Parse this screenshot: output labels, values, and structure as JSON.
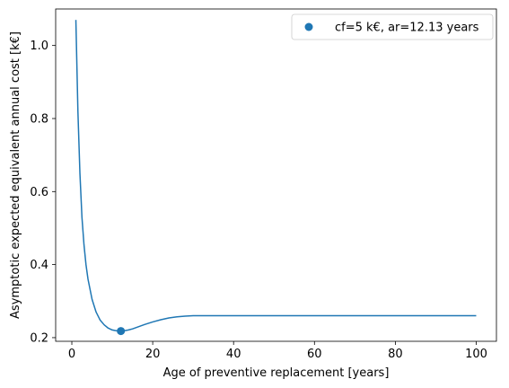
{
  "chart_data": {
    "type": "line",
    "xlabel": "Age of preventive replacement [years]",
    "ylabel": "Asymptotic expected equivalent annual cost [k€]",
    "xlim": [
      -4.0,
      105.0
    ],
    "ylim": [
      0.19,
      1.1
    ],
    "x_ticks": [
      0,
      20,
      40,
      60,
      80,
      100
    ],
    "x_tick_labels": [
      "0",
      "20",
      "40",
      "60",
      "80",
      "100"
    ],
    "y_ticks": [
      0.2,
      0.4,
      0.6,
      0.8,
      1.0
    ],
    "y_tick_labels": [
      "0.2",
      "0.4",
      "0.6",
      "0.8",
      "1.0"
    ],
    "grid": false,
    "legend_position": "top-right",
    "colors": {
      "line": "#1f77b4",
      "marker": "#1f77b4"
    },
    "series": [
      {
        "kind": "line",
        "x": [
          1,
          1.5,
          2,
          2.5,
          3,
          3.5,
          4,
          5,
          6,
          7,
          8,
          9,
          10,
          11,
          12,
          12.13,
          13,
          14,
          15,
          16,
          18,
          20,
          22,
          24,
          26,
          28,
          30,
          35,
          40,
          50,
          60,
          70,
          80,
          90,
          100
        ],
        "y": [
          1.07,
          0.82,
          0.65,
          0.53,
          0.455,
          0.4,
          0.36,
          0.305,
          0.27,
          0.248,
          0.235,
          0.226,
          0.221,
          0.219,
          0.218,
          0.218,
          0.219,
          0.221,
          0.224,
          0.228,
          0.236,
          0.243,
          0.249,
          0.254,
          0.257,
          0.259,
          0.26,
          0.26,
          0.26,
          0.26,
          0.26,
          0.26,
          0.26,
          0.26,
          0.26
        ]
      }
    ],
    "points": [
      {
        "name": "cf=5 k€, ar=12.13 years",
        "x": 12.13,
        "y": 0.218
      }
    ]
  }
}
